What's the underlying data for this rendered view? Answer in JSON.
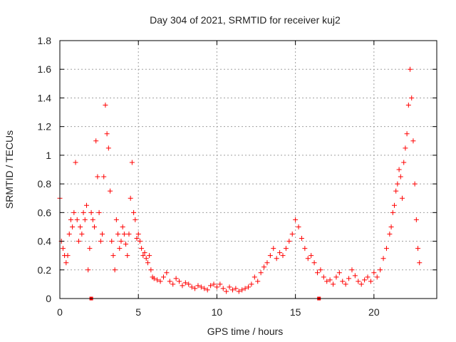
{
  "chart_data": {
    "type": "scatter",
    "title": "Day 304 of 2021, SRMTID for receiver kuj2",
    "xlabel": "GPS time / hours",
    "ylabel": "SRMTID / TECUs",
    "xlim": [
      0,
      24
    ],
    "ylim": [
      0,
      1.8
    ],
    "xticks": [
      0,
      5,
      10,
      15,
      20
    ],
    "xtick_labels": [
      "0",
      "5",
      "10",
      "15",
      "20"
    ],
    "yticks": [
      0,
      0.2,
      0.4,
      0.6,
      0.8,
      1,
      1.2,
      1.4,
      1.6,
      1.8
    ],
    "ytick_labels": [
      "0",
      "0.2",
      "0.4",
      "0.6",
      "0.8",
      "1",
      "1.2",
      "1.4",
      "1.6",
      "1.8"
    ],
    "grid": true,
    "marker": "+",
    "color": "#ff0000",
    "axis_flags": [
      2.0,
      16.5
    ],
    "series": [
      {
        "name": "SRMTID",
        "x": [
          0.0,
          0.1,
          0.2,
          0.3,
          0.4,
          0.5,
          0.6,
          0.7,
          0.8,
          0.9,
          1.0,
          1.1,
          1.2,
          1.3,
          1.4,
          1.5,
          1.6,
          1.7,
          1.8,
          1.9,
          2.0,
          2.1,
          2.2,
          2.3,
          2.4,
          2.5,
          2.6,
          2.7,
          2.8,
          2.9,
          3.0,
          3.1,
          3.2,
          3.3,
          3.4,
          3.5,
          3.6,
          3.7,
          3.8,
          3.9,
          4.0,
          4.1,
          4.2,
          4.3,
          4.4,
          4.5,
          4.6,
          4.7,
          4.8,
          4.9,
          5.0,
          5.1,
          5.2,
          5.3,
          5.4,
          5.5,
          5.6,
          5.7,
          5.8,
          5.9,
          6.0,
          6.2,
          6.4,
          6.6,
          6.8,
          7.0,
          7.2,
          7.4,
          7.6,
          7.8,
          8.0,
          8.2,
          8.4,
          8.6,
          8.8,
          9.0,
          9.2,
          9.4,
          9.6,
          9.8,
          10.0,
          10.2,
          10.4,
          10.6,
          10.8,
          11.0,
          11.2,
          11.4,
          11.6,
          11.8,
          12.0,
          12.2,
          12.4,
          12.6,
          12.8,
          13.0,
          13.2,
          13.4,
          13.6,
          13.8,
          14.0,
          14.2,
          14.4,
          14.6,
          14.8,
          15.0,
          15.2,
          15.4,
          15.6,
          15.8,
          16.0,
          16.2,
          16.4,
          16.6,
          16.8,
          17.0,
          17.2,
          17.4,
          17.6,
          17.8,
          18.0,
          18.2,
          18.4,
          18.6,
          18.8,
          19.0,
          19.2,
          19.4,
          19.6,
          19.8,
          20.0,
          20.2,
          20.4,
          20.6,
          20.8,
          21.0,
          21.1,
          21.2,
          21.3,
          21.4,
          21.5,
          21.6,
          21.7,
          21.8,
          21.9,
          22.0,
          22.1,
          22.2,
          22.3,
          22.4,
          22.5,
          22.6,
          22.7,
          22.8,
          22.9
        ],
        "y": [
          0.7,
          0.4,
          0.35,
          0.3,
          0.25,
          0.3,
          0.45,
          0.55,
          0.5,
          0.6,
          0.95,
          0.55,
          0.4,
          0.5,
          0.45,
          0.6,
          0.55,
          0.65,
          0.2,
          0.35,
          0.6,
          0.55,
          0.5,
          1.1,
          0.85,
          0.6,
          0.4,
          0.45,
          0.85,
          1.35,
          1.15,
          1.05,
          0.75,
          0.4,
          0.3,
          0.2,
          0.55,
          0.45,
          0.35,
          0.4,
          0.5,
          0.45,
          0.38,
          0.3,
          0.45,
          0.7,
          0.95,
          0.6,
          0.55,
          0.42,
          0.45,
          0.4,
          0.35,
          0.3,
          0.32,
          0.28,
          0.25,
          0.3,
          0.2,
          0.15,
          0.14,
          0.13,
          0.12,
          0.15,
          0.18,
          0.12,
          0.1,
          0.14,
          0.12,
          0.09,
          0.11,
          0.1,
          0.08,
          0.07,
          0.09,
          0.08,
          0.07,
          0.06,
          0.09,
          0.1,
          0.08,
          0.1,
          0.07,
          0.05,
          0.08,
          0.06,
          0.07,
          0.05,
          0.06,
          0.07,
          0.08,
          0.1,
          0.15,
          0.12,
          0.18,
          0.22,
          0.25,
          0.3,
          0.35,
          0.28,
          0.32,
          0.3,
          0.35,
          0.4,
          0.45,
          0.55,
          0.5,
          0.42,
          0.35,
          0.28,
          0.3,
          0.25,
          0.18,
          0.2,
          0.15,
          0.12,
          0.13,
          0.1,
          0.15,
          0.18,
          0.12,
          0.1,
          0.14,
          0.2,
          0.16,
          0.12,
          0.1,
          0.13,
          0.15,
          0.12,
          0.18,
          0.15,
          0.2,
          0.28,
          0.35,
          0.45,
          0.5,
          0.6,
          0.65,
          0.75,
          0.8,
          0.9,
          0.85,
          0.7,
          0.95,
          1.05,
          1.15,
          1.35,
          1.6,
          1.4,
          1.1,
          0.8,
          0.55,
          0.35,
          0.25
        ]
      }
    ]
  }
}
